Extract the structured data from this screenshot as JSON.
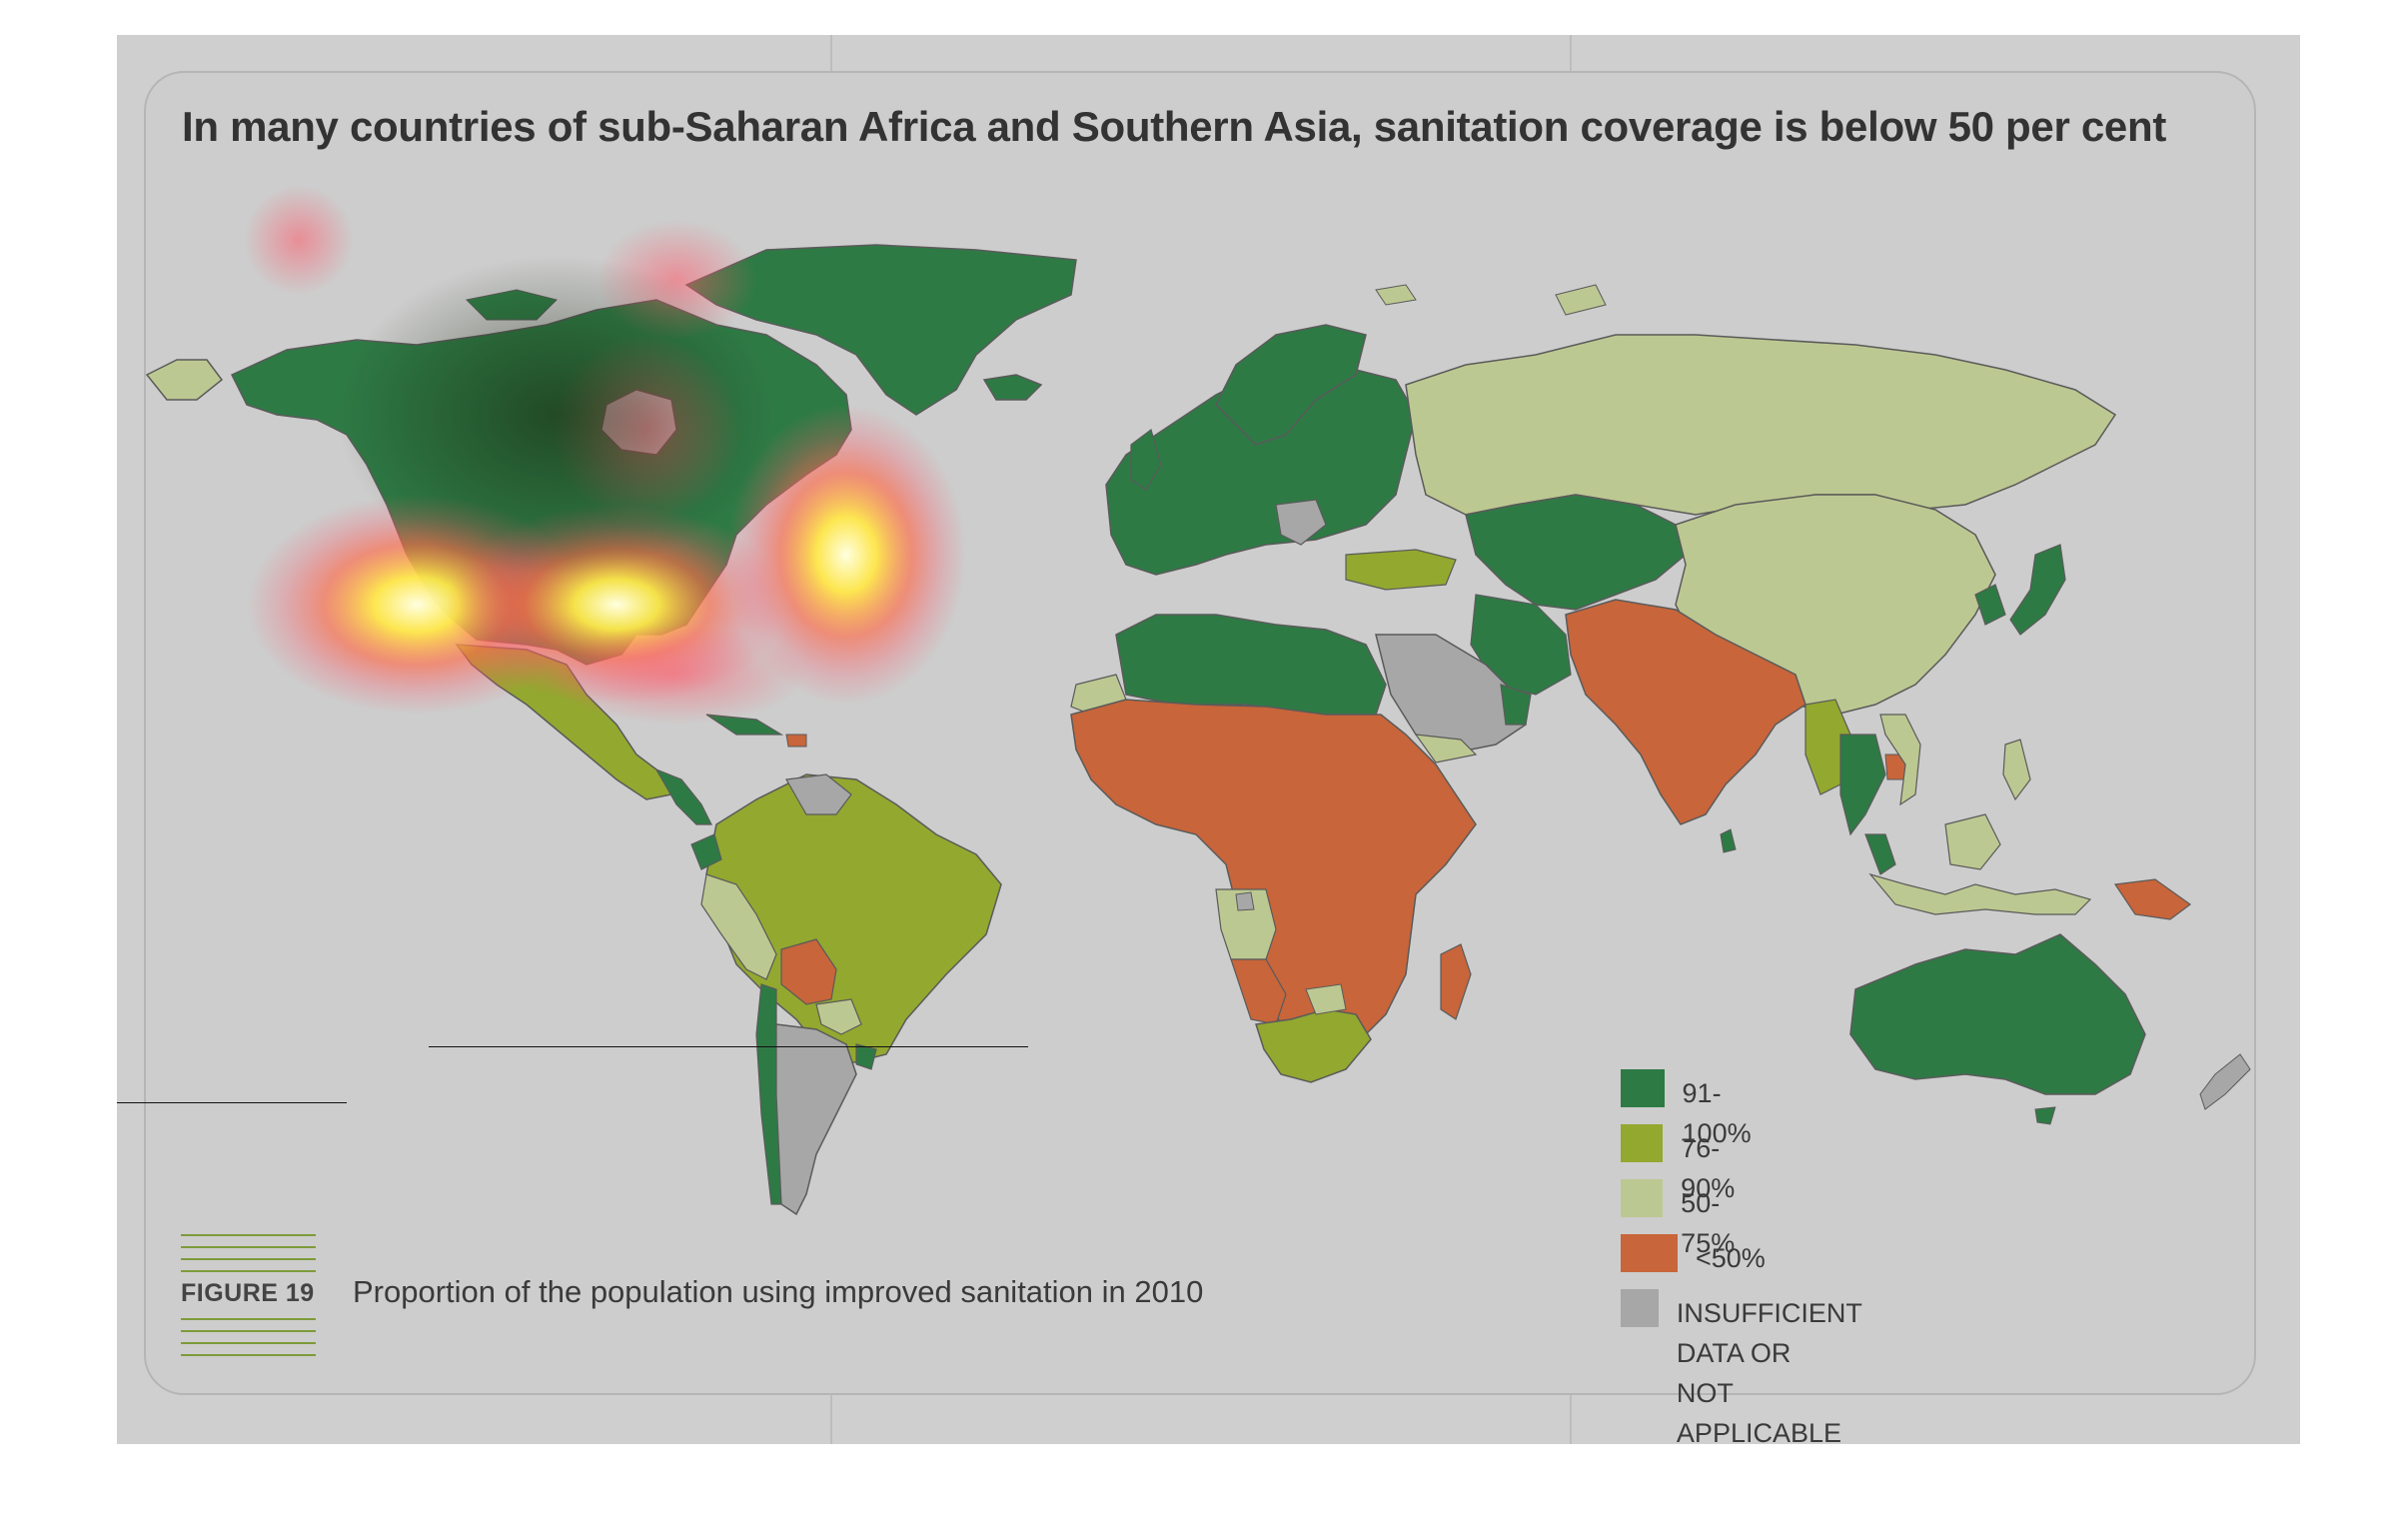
{
  "figure": {
    "title": "In many countries of sub-Saharan Africa and Southern Asia, sanitation coverage is below 50 per cent",
    "label": "FIGURE 19",
    "caption": "Proportion of the population using improved sanitation in 2010"
  },
  "legend": {
    "items": [
      {
        "label": "91-100%",
        "color": "#2e7a45"
      },
      {
        "label": "76-90%",
        "color": "#93a82f"
      },
      {
        "label": "50-75%",
        "color": "#bcc891"
      },
      {
        "label": "<50%",
        "color": "#c8653a"
      },
      {
        "label": "INSUFFICIENT DATA OR",
        "label2": "NOT APPLICABLE",
        "color": "#a7a7a7"
      }
    ]
  },
  "map": {
    "colors": {
      "dark_green": "#2e7a45",
      "olive": "#93a82f",
      "light_olive": "#bcc891",
      "orange": "#c8653a",
      "gray": "#a7a7a7",
      "ocean": "#cdcdcd",
      "border": "#5a5a5a"
    },
    "heatmap_overlay": true
  }
}
